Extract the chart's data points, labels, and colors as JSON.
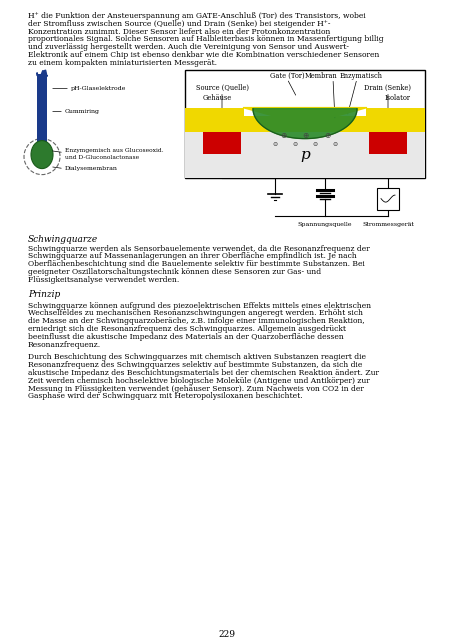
{
  "bg_color": "#ffffff",
  "text_color": "#000000",
  "page_number": "229",
  "para1_lines": [
    "H⁺ die Funktion der Ansteuerspannung am GATE-Anschluß (Tor) des Transistors, wobei",
    "der Stromfluss zwischen Source (Quelle) und Drain (Senke) bei steigender H⁺-",
    "Konzentration zunimmt. Dieser Sensor liefert also ein der Protonkonzentration",
    "proportionales Signal. Solche Sensoren auf Halbleiterbasis können in Massenfertigung billig",
    "und zuverlässig hergestellt werden. Auch die Vereinigung von Sensor und Auswert-",
    "Elektronik auf einem Chip ist ebenso denkbar wie die Kombination verschiedener Sensoren",
    "zu einem kompakten miniaturisierten Messgerät."
  ],
  "schwingquarze_heading": "Schwingquarze",
  "sw_lines": [
    "Schwingquarze werden als Sensorbauelemente verwendet, da die Resonanzfrequenz der",
    "Schwingquarze auf Massenanlagerungen an ihrer Oberfläche empfindlich ist. Je nach",
    "Oberflächenbeschichtung sind die Bauelemente selektiv für bestimmte Substanzen. Bei",
    "geeigneter Oszillatorschaltungstechnik können diese Sensoren zur Gas- und",
    "Flüssigkeitsanalyse verwendet werden."
  ],
  "prinzip_heading": "Prinzip",
  "pr1_lines": [
    "Schwingquarze können aufgrund des piezoelektrischen Effekts mittels eines elektrischen",
    "Wechselfeldes zu mechanischen Resonanzschwingungen angeregt werden. Erhöht sich",
    "die Masse an der Schwingquarzoberäche, z.B. infolge einer immunologischen Reaktion,",
    "erniedrigt sich die Resonanzfrequenz des Schwingquarzes. Allgemein ausgedrückt",
    "beeinflusst die akustische Impedanz des Materials an der Quarzoberfläche dessen",
    "Resonanzfrequenz."
  ],
  "pr2_lines": [
    "Durch Beschichtung des Schwingquarzes mit chemisch aktiven Substanzen reagiert die",
    "Resonanzfrequenz des Schwingquarzes selektiv auf bestimmte Substanzen, da sich die",
    "akustische Impedanz des Beschichtungsmaterials bei der chemischen Reaktion ändert. Zur",
    "Zeit werden chemisch hochselektive biologische Moleküle (Antigene und Antikörper) zur",
    "Messung in Flüssigkeiten verwendet (gehäuser Sensor). Zum Nachweis von CO2 in der",
    "Gasphase wird der Schwingquarz mit Heteropolysiloxanen beschichtet."
  ],
  "blue_color": "#1a3a8a",
  "green_color": "#2d7a2d",
  "yellow_color": "#f0d800",
  "red_color": "#cc0000",
  "p_bg": "#e8e8e8"
}
